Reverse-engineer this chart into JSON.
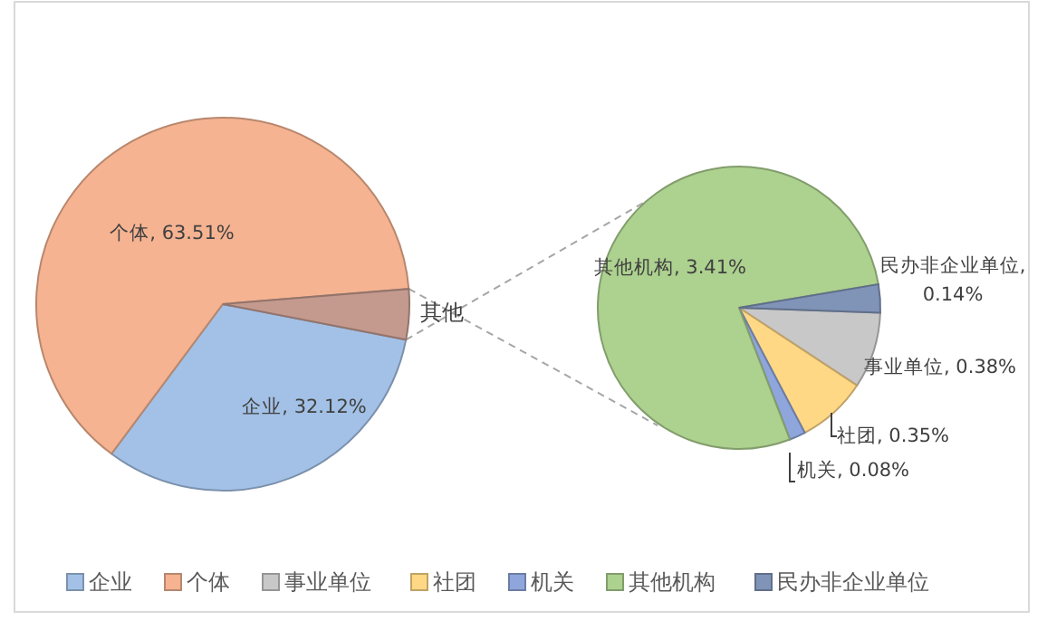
{
  "chart_data": [
    {
      "type": "pie",
      "categories": [
        "企业",
        "个体",
        "其他"
      ],
      "values": [
        32.12,
        63.51,
        4.36
      ],
      "colors": [
        "#a3c1e6",
        "#f5b391",
        "#c49a8f"
      ],
      "value_labels": [
        "企业, 32.12%",
        "个体, 63.51%",
        null
      ],
      "legend": "bottom"
    },
    {
      "type": "pie",
      "categories": [
        "事业单位",
        "社团",
        "机关",
        "其他机构",
        "民办非企业单位"
      ],
      "values": [
        0.38,
        0.35,
        0.08,
        3.41,
        0.14
      ],
      "colors": [
        "#c8c8c8",
        "#ffd886",
        "#8fa6dc",
        "#add18f",
        "#8094b8"
      ],
      "value_labels": [
        "事业单位, 0.38%",
        "社团, 0.35%",
        "机关, 0.08%",
        "其他机构, 3.41%",
        "民办非企业单位, 0.14%"
      ],
      "legend": "bottom"
    }
  ]
}
